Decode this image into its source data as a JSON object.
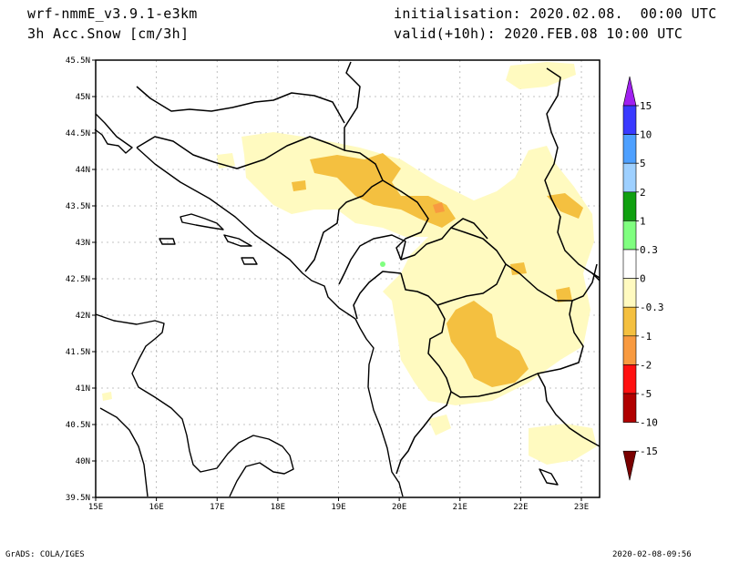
{
  "header": {
    "model": "wrf-nmmE_v3.9.1-e3km",
    "variable": "3h Acc.Snow [cm/3h]",
    "initialisation": "initialisation: 2020.02.08.  00:00 UTC",
    "valid": "valid(+10h): 2020.FEB.08 10:00 UTC"
  },
  "map": {
    "lat_labels": [
      "45.5N",
      "45N",
      "44.5N",
      "44N",
      "43.5N",
      "43N",
      "42.5N",
      "42N",
      "41.5N",
      "41N",
      "40.5N",
      "40N",
      "39.5N"
    ],
    "lon_labels": [
      "15E",
      "16E",
      "17E",
      "18E",
      "19E",
      "20E",
      "21E",
      "22E",
      "23E"
    ],
    "lat_range": [
      39.5,
      45.5
    ],
    "lon_range": [
      15,
      23.3
    ]
  },
  "legend": {
    "labels": [
      "15",
      "10",
      "5",
      "2",
      "1",
      "0.3",
      "0",
      "-0.3",
      "-1",
      "-2",
      "-5",
      "-10",
      "-15"
    ],
    "colors": [
      "#a020f0",
      "#3a3aff",
      "#4ea0ff",
      "#9ed0ff",
      "#10a010",
      "#80ff80",
      "#ffffff",
      "#fffac0",
      "#f4c040",
      "#f89a40",
      "#ff1010",
      "#b00000",
      "#7a0000"
    ]
  },
  "footer": {
    "left": "GrADS: COLA/IGES",
    "right": "2020-02-08-09:56"
  }
}
